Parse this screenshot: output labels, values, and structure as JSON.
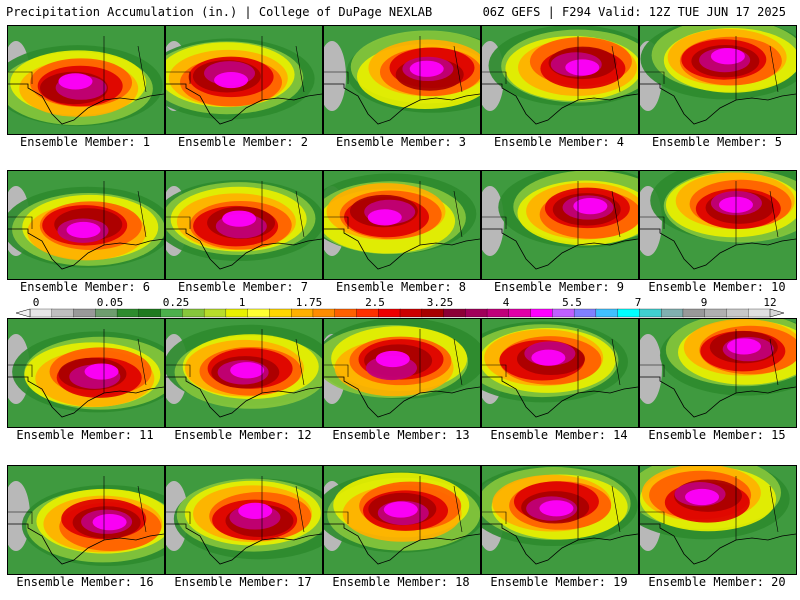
{
  "header": {
    "title": "Precipitation Accumulation (in.) | College of DuPage NEXLAB",
    "run_info": "06Z GEFS | F294 Valid: 12Z TUE JUN 17 2025"
  },
  "panels": [
    {
      "label": "Ensemble Member: 1"
    },
    {
      "label": "Ensemble Member: 2"
    },
    {
      "label": "Ensemble Member: 3"
    },
    {
      "label": "Ensemble Member: 4"
    },
    {
      "label": "Ensemble Member: 5"
    },
    {
      "label": "Ensemble Member: 6"
    },
    {
      "label": "Ensemble Member: 7"
    },
    {
      "label": "Ensemble Member: 8"
    },
    {
      "label": "Ensemble Member: 9"
    },
    {
      "label": "Ensemble Member: 10"
    },
    {
      "label": "Ensemble Member: 11"
    },
    {
      "label": "Ensemble Member: 12"
    },
    {
      "label": "Ensemble Member: 13"
    },
    {
      "label": "Ensemble Member: 14"
    },
    {
      "label": "Ensemble Member: 15"
    },
    {
      "label": "Ensemble Member: 16"
    },
    {
      "label": "Ensemble Member: 17"
    },
    {
      "label": "Ensemble Member: 18"
    },
    {
      "label": "Ensemble Member: 19"
    },
    {
      "label": "Ensemble Member: 20"
    }
  ],
  "colorbar": {
    "tick_labels": [
      "0",
      "0.05",
      "0.25",
      "1",
      "1.75",
      "2.5",
      "3.25",
      "4",
      "5.5",
      "7",
      "9",
      "12"
    ],
    "colors": [
      "#e6e6e6",
      "#bfbfbf",
      "#999999",
      "#6e9e6e",
      "#2e8b2e",
      "#1f7a1f",
      "#4cb04c",
      "#86c63c",
      "#b8dc2a",
      "#e8f000",
      "#ffff33",
      "#ffd700",
      "#ffb000",
      "#ff8c00",
      "#ff6000",
      "#ff3000",
      "#ee0000",
      "#cc0000",
      "#a80000",
      "#8b0036",
      "#a0005a",
      "#c0007a",
      "#e000a8",
      "#ff00ff",
      "#c060ff",
      "#8080ff",
      "#40c0ff",
      "#00ffff",
      "#40d0d0",
      "#80b0b0",
      "#999999",
      "#b0b0b0",
      "#c8c8c8",
      "#e0e0e0"
    ]
  }
}
